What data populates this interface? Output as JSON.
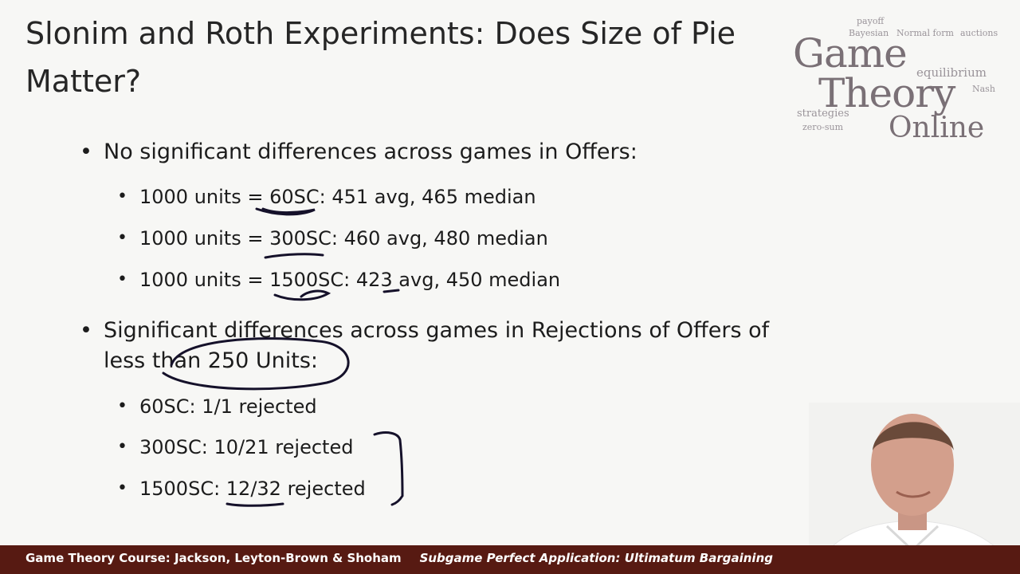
{
  "slide": {
    "title": "Slonim and Roth Experiments: Does Size of Pie Matter?",
    "bullets": [
      {
        "text": "No significant differences across games in Offers:",
        "subs": [
          "1000 units = 60SC: 451 avg, 465 median",
          "1000 units = 300SC: 460 avg, 480 median",
          "1000 units = 1500SC: 423 avg, 450 median"
        ]
      },
      {
        "text": "Significant differences across games in Rejections of Offers of less than 250 Units:",
        "subs": [
          "60SC: 1/1 rejected",
          "300SC: 10/21 rejected",
          "1500SC: 12/32 rejected"
        ]
      }
    ]
  },
  "logo": {
    "line1": "Game",
    "line2": "Theory",
    "line3": "Online",
    "words": [
      "payoff",
      "Bayesian",
      "Normal form",
      "auctions",
      "equilibrium",
      "strategies",
      "zero-sum",
      "Nash"
    ]
  },
  "footer": {
    "left": "Game Theory Course: Jackson, Leyton-Brown & Shoham",
    "right": "Subgame Perfect Application: Ultimatum Bargaining"
  },
  "colors": {
    "footer_bg": "#571a12",
    "logo_text": "#7a7076"
  }
}
